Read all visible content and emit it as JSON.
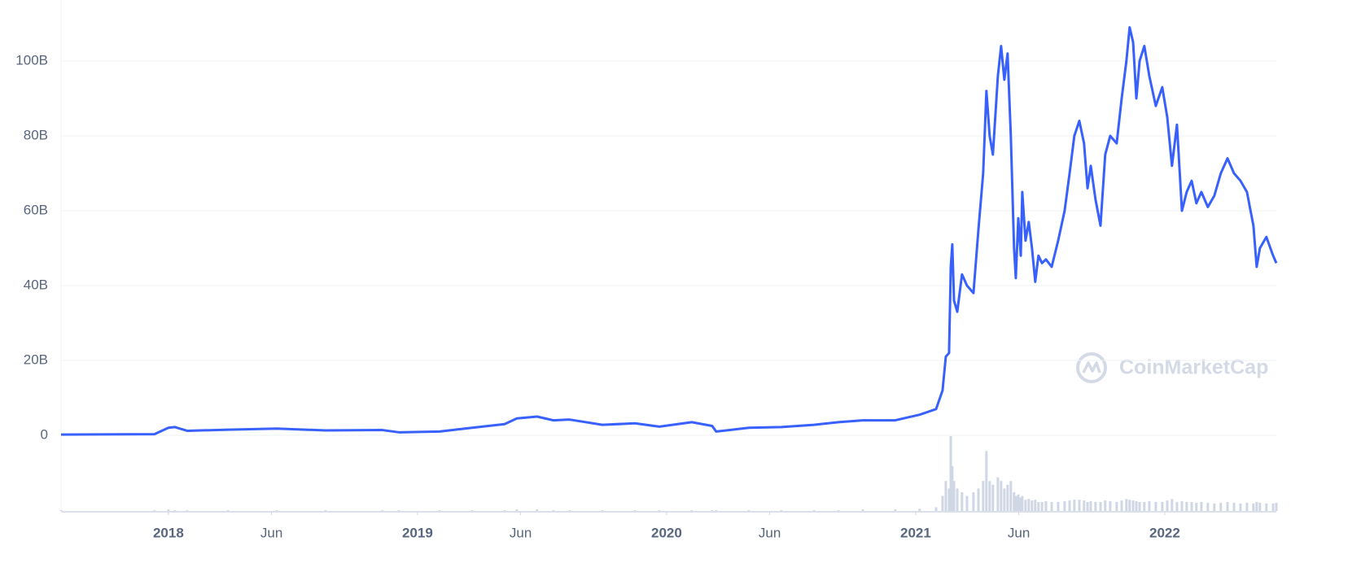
{
  "chart_data": {
    "type": "line",
    "watermark": "CoinMarketCap",
    "x": [
      2017.569,
      2017.944,
      2018.0,
      2018.026,
      2018.075,
      2018.239,
      2018.435,
      2018.631,
      2018.859,
      2018.925,
      2019.088,
      2019.219,
      2019.35,
      2019.399,
      2019.48,
      2019.546,
      2019.611,
      2019.742,
      2019.873,
      2019.971,
      2020.101,
      2020.183,
      2020.199,
      2020.33,
      2020.461,
      2020.592,
      2020.69,
      2020.788,
      2020.918,
      2021.016,
      2021.082,
      2021.108,
      2021.121,
      2021.134,
      2021.141,
      2021.147,
      2021.154,
      2021.167,
      2021.186,
      2021.206,
      2021.232,
      2021.252,
      2021.271,
      2021.284,
      2021.297,
      2021.31,
      2021.33,
      2021.343,
      2021.356,
      2021.369,
      2021.382,
      2021.395,
      2021.402,
      2021.412,
      2021.422,
      2021.428,
      2021.441,
      2021.454,
      2021.467,
      2021.48,
      2021.493,
      2021.507,
      2021.523,
      2021.546,
      2021.572,
      2021.598,
      2021.618,
      2021.637,
      2021.657,
      2021.676,
      2021.69,
      2021.703,
      2021.722,
      2021.742,
      2021.761,
      2021.781,
      2021.807,
      2021.827,
      2021.846,
      2021.859,
      2021.873,
      2021.886,
      2021.899,
      2021.918,
      2021.938,
      2021.964,
      2021.99,
      2022.01,
      2022.029,
      2022.049,
      2022.069,
      2022.088,
      2022.108,
      2022.127,
      2022.147,
      2022.173,
      2022.199,
      2022.225,
      2022.252,
      2022.278,
      2022.304,
      2022.33,
      2022.356,
      2022.369,
      2022.382,
      2022.408,
      2022.435,
      2022.448
    ],
    "series": [
      {
        "color": "#3861fb",
        "values": [
          0.2,
          0.3,
          2.0,
          2.2,
          1.2,
          1.5,
          1.8,
          1.3,
          1.4,
          0.8,
          1.0,
          2.0,
          3.0,
          4.5,
          5.0,
          4.0,
          4.2,
          2.8,
          3.2,
          2.3,
          3.5,
          2.5,
          1.0,
          2.0,
          2.2,
          2.8,
          3.5,
          4.0,
          4.0,
          5.5,
          7.0,
          12,
          21,
          22,
          45,
          51,
          36,
          33,
          43,
          40,
          38,
          55,
          70,
          92,
          80,
          75,
          96,
          104,
          95,
          102,
          80,
          50,
          42,
          58,
          48,
          65,
          52,
          57,
          50,
          41,
          48,
          46,
          47,
          45,
          52,
          60,
          70,
          80,
          84,
          78,
          66,
          72,
          63,
          56,
          75,
          80,
          78,
          90,
          100,
          109,
          105,
          90,
          100,
          104,
          96,
          88,
          93,
          85,
          72,
          83,
          60,
          65,
          68,
          62,
          65,
          61,
          64,
          70,
          74,
          70,
          68,
          65,
          56,
          45,
          50,
          53,
          48,
          46
        ]
      }
    ],
    "volume": {
      "color": "#cfd6e4",
      "ylim": [
        0,
        100
      ],
      "values": [
        1,
        1,
        2,
        1,
        1,
        1,
        1,
        1,
        1,
        1,
        1,
        1,
        1,
        2,
        2,
        1,
        1,
        1,
        1,
        1,
        1,
        1,
        1,
        1,
        1,
        1,
        1,
        2,
        2,
        3,
        5,
        20,
        40,
        30,
        100,
        60,
        40,
        30,
        25,
        20,
        25,
        30,
        40,
        80,
        40,
        35,
        45,
        40,
        30,
        35,
        40,
        25,
        20,
        22,
        18,
        20,
        15,
        16,
        14,
        15,
        12,
        12,
        13,
        12,
        12,
        13,
        14,
        15,
        15,
        14,
        12,
        13,
        12,
        12,
        14,
        13,
        12,
        14,
        16,
        15,
        14,
        13,
        12,
        12,
        13,
        12,
        12,
        14,
        16,
        12,
        13,
        12,
        12,
        11,
        12,
        11,
        10,
        11,
        12,
        11,
        10,
        11,
        10,
        12,
        11,
        10,
        10,
        11
      ]
    },
    "xlim": [
      2017.569,
      2022.448
    ],
    "xticks": [
      2018,
      {
        "value": 2018.414,
        "label": "Jun"
      },
      2019,
      {
        "value": 2019.414,
        "label": "Jun"
      },
      2020,
      {
        "value": 2020.414,
        "label": "Jun"
      },
      2021,
      {
        "value": 2021.414,
        "label": "Jun"
      },
      2022
    ],
    "ylim": [
      0,
      116
    ],
    "yticks": [
      0,
      {
        "value": 20,
        "label": "20B"
      },
      {
        "value": 40,
        "label": "40B"
      },
      {
        "value": 60,
        "label": "60B"
      },
      {
        "value": 80,
        "label": "80B"
      },
      {
        "value": 100,
        "label": "100B"
      }
    ],
    "grid": true
  }
}
